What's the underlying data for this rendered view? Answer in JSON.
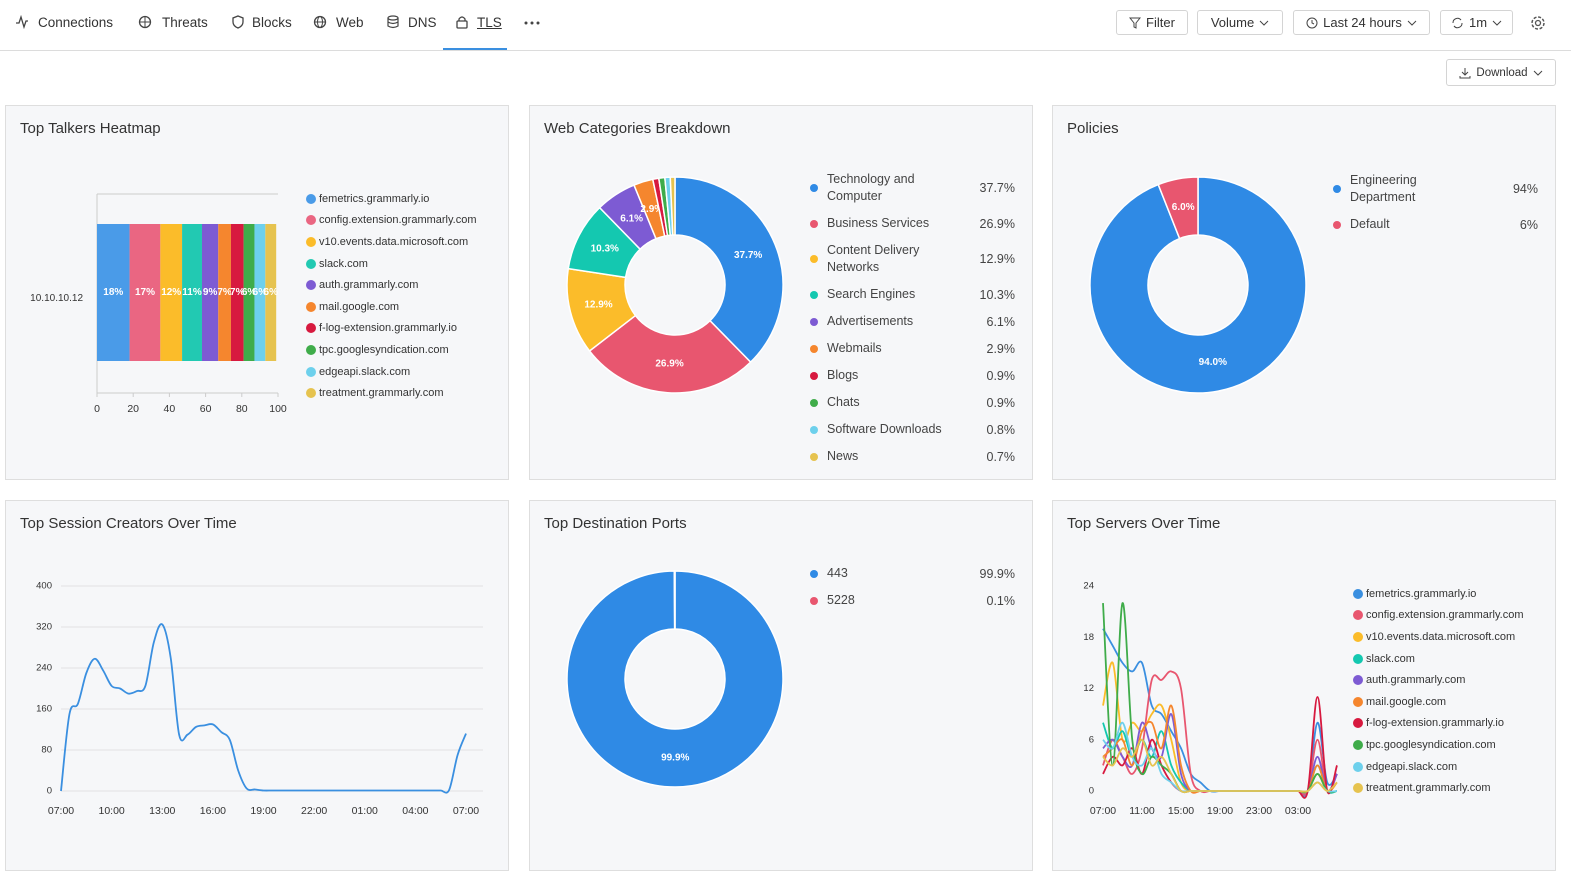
{
  "nav": {
    "tabs": [
      "Connections",
      "Threats",
      "Blocks",
      "Web",
      "DNS",
      "TLS"
    ],
    "active": 5
  },
  "toolbar": {
    "filter": "Filter",
    "volume": "Volume",
    "range": "Last 24 hours",
    "refresh": "1m",
    "download": "Download"
  },
  "chart_data": [
    {
      "type": "stacked-bar",
      "orientation": "horizontal",
      "title": "Top Talkers Heatmap",
      "categories": [
        "10.10.10.12"
      ],
      "series": [
        {
          "name": "femetrics.grammarly.io",
          "color": "#4a9be8",
          "values": [
            18
          ],
          "value_labels": [
            "18%"
          ]
        },
        {
          "name": "config.extension.grammarly.com",
          "color": "#ea6682",
          "values": [
            17
          ],
          "value_labels": [
            "17%"
          ]
        },
        {
          "name": "v10.events.data.microsoft.com",
          "color": "#fbbc2a",
          "values": [
            12
          ],
          "value_labels": [
            "12%"
          ]
        },
        {
          "name": "slack.com",
          "color": "#22c9b2",
          "values": [
            11
          ],
          "value_labels": [
            "11%"
          ]
        },
        {
          "name": "auth.grammarly.com",
          "color": "#7d5bd3",
          "values": [
            9
          ],
          "value_labels": [
            "9%"
          ]
        },
        {
          "name": "mail.google.com",
          "color": "#f5862e",
          "values": [
            7
          ],
          "value_labels": [
            "7%"
          ]
        },
        {
          "name": "f-log-extension.grammarly.io",
          "color": "#d7193f",
          "values": [
            7
          ],
          "value_labels": [
            "7%"
          ]
        },
        {
          "name": "tpc.googlesyndication.com",
          "color": "#3fac4a",
          "values": [
            6
          ],
          "value_labels": [
            "6%"
          ]
        },
        {
          "name": "edgeapi.slack.com",
          "color": "#6dd0ec",
          "values": [
            6
          ],
          "value_labels": [
            "6%"
          ]
        },
        {
          "name": "treatment.grammarly.com",
          "color": "#e6c34f",
          "values": [
            6
          ],
          "value_labels": [
            "6%"
          ]
        }
      ],
      "xlim": [
        0,
        100
      ],
      "xticks": [
        0,
        20,
        40,
        60,
        80,
        100
      ],
      "grid": false
    },
    {
      "type": "donut",
      "title": "Web Categories Breakdown",
      "categories": [
        "Technology and Computer",
        "Business Services",
        "Content Delivery Networks",
        "Search Engines",
        "Advertisements",
        "Webmails",
        "Blogs",
        "Chats",
        "Software Downloads",
        "News"
      ],
      "values": [
        37.7,
        26.9,
        12.9,
        10.3,
        6.1,
        2.9,
        0.9,
        0.9,
        0.8,
        0.7
      ],
      "value_labels": [
        "37.7%",
        "26.9%",
        "12.9%",
        "10.3%",
        "6.1%",
        "2.9%",
        "0.9%",
        "0.9%",
        "0.8%",
        "0.7%"
      ],
      "colors": [
        "#2f8ae5",
        "#e8566f",
        "#fbbc2a",
        "#14c8b0",
        "#7d5bd3",
        "#f5862e",
        "#d7193f",
        "#3fac4a",
        "#6dd0ec",
        "#e6c34f"
      ]
    },
    {
      "type": "donut",
      "title": "Policies",
      "categories": [
        "Engineering Department",
        "Default"
      ],
      "values": [
        94,
        6
      ],
      "value_labels": [
        "94%",
        "6%"
      ],
      "slice_labels": [
        "94.0%",
        "6.0%"
      ],
      "colors": [
        "#2f8ae5",
        "#e8566f"
      ]
    },
    {
      "type": "line",
      "title": "Top Session Creators Over Time",
      "categories": [
        "07:00",
        null,
        null,
        null,
        null,
        null,
        "10:00",
        null,
        null,
        null,
        null,
        null,
        "13:00",
        null,
        null,
        null,
        null,
        null,
        "16:00",
        null,
        null,
        null,
        null,
        null,
        "19:00",
        null,
        null,
        null,
        null,
        null,
        "22:00",
        null,
        null,
        null,
        null,
        null,
        "01:00",
        null,
        null,
        null,
        null,
        null,
        "04:00",
        null,
        null,
        null,
        null,
        null,
        "07:00"
      ],
      "values": [
        0,
        150,
        170,
        230,
        258,
        235,
        205,
        200,
        190,
        195,
        205,
        290,
        325,
        260,
        110,
        110,
        125,
        128,
        130,
        115,
        100,
        40,
        5,
        3,
        1,
        1,
        1,
        1,
        1,
        1,
        1,
        1,
        1,
        1,
        1,
        1,
        1,
        1,
        1,
        1,
        1,
        1,
        1,
        1,
        1,
        1,
        2,
        70,
        112
      ],
      "color": "#3a8fe0",
      "ylim": [
        0,
        400
      ],
      "yticks": [
        0,
        80,
        160,
        240,
        320,
        400
      ],
      "grid": true
    },
    {
      "type": "donut",
      "title": "Top Destination Ports",
      "categories": [
        "443",
        "5228"
      ],
      "values": [
        99.9,
        0.1
      ],
      "value_labels": [
        "99.9%",
        "0.1%"
      ],
      "colors": [
        "#2f8ae5",
        "#e8566f"
      ]
    },
    {
      "type": "line",
      "title": "Top Servers Over Time",
      "categories": [
        "07:00",
        null,
        null,
        null,
        "11:00",
        null,
        null,
        null,
        "15:00",
        null,
        null,
        null,
        "19:00",
        null,
        null,
        null,
        "23:00",
        null,
        null,
        null,
        "03:00",
        null,
        null,
        null,
        null
      ],
      "series": [
        {
          "name": "femetrics.grammarly.io",
          "color": "#3a8fe0",
          "values": [
            19,
            17,
            15,
            14,
            15,
            10,
            9,
            7,
            5,
            2,
            1,
            0,
            0,
            0,
            0,
            0,
            0,
            0,
            0,
            0,
            0,
            0,
            8,
            1,
            2
          ]
        },
        {
          "name": "config.extension.grammarly.com",
          "color": "#e8566f",
          "values": [
            3,
            6,
            4,
            2,
            5,
            13,
            13,
            14,
            12,
            2,
            0,
            0,
            0,
            0,
            0,
            0,
            0,
            0,
            0,
            0,
            0,
            0,
            6,
            0,
            2
          ]
        },
        {
          "name": "v10.events.data.microsoft.com",
          "color": "#fbbc2a",
          "values": [
            10,
            15,
            6,
            8,
            7,
            9,
            10,
            6,
            1,
            0,
            0,
            0,
            0,
            0,
            0,
            0,
            0,
            0,
            0,
            0,
            0,
            0,
            2,
            0,
            1
          ]
        },
        {
          "name": "slack.com",
          "color": "#14c8b0",
          "values": [
            8,
            5,
            7,
            4,
            6,
            4,
            7,
            3,
            1,
            0,
            0,
            0,
            0,
            0,
            0,
            0,
            0,
            0,
            0,
            0,
            0,
            0,
            3,
            0,
            0
          ]
        },
        {
          "name": "auth.grammarly.com",
          "color": "#7d5bd3",
          "values": [
            5,
            6,
            4,
            3,
            8,
            5,
            4,
            9,
            2,
            0,
            0,
            0,
            0,
            0,
            0,
            0,
            0,
            0,
            0,
            0,
            0,
            0,
            4,
            0,
            2
          ]
        },
        {
          "name": "mail.google.com",
          "color": "#f5862e",
          "values": [
            4,
            5,
            6,
            3,
            7,
            8,
            5,
            10,
            3,
            0,
            0,
            0,
            0,
            0,
            0,
            0,
            0,
            0,
            0,
            0,
            0,
            0,
            3,
            0,
            1
          ]
        },
        {
          "name": "f-log-extension.grammarly.io",
          "color": "#d7193f",
          "values": [
            2,
            4,
            3,
            5,
            2,
            6,
            3,
            1,
            0,
            0,
            0,
            0,
            0,
            0,
            0,
            0,
            0,
            0,
            0,
            0,
            0,
            0,
            11,
            0,
            3
          ]
        },
        {
          "name": "tpc.googlesyndication.com",
          "color": "#3fac4a",
          "values": [
            22,
            3,
            22,
            6,
            2,
            4,
            3,
            2,
            0,
            0,
            0,
            0,
            0,
            0,
            0,
            0,
            0,
            0,
            0,
            0,
            0,
            0,
            2,
            0,
            0
          ]
        },
        {
          "name": "edgeapi.slack.com",
          "color": "#6dd0ec",
          "values": [
            6,
            5,
            8,
            4,
            3,
            5,
            2,
            1,
            0,
            0,
            0,
            0,
            0,
            0,
            0,
            0,
            0,
            0,
            0,
            0,
            0,
            0,
            1,
            0,
            0
          ]
        },
        {
          "name": "treatment.grammarly.com",
          "color": "#e6c34f",
          "values": [
            4,
            3,
            5,
            4,
            6,
            3,
            4,
            2,
            0,
            0,
            0,
            0,
            0,
            0,
            0,
            0,
            0,
            0,
            0,
            0,
            0,
            0,
            1,
            0,
            1
          ]
        }
      ],
      "ylim": [
        0,
        24
      ],
      "yticks": [
        0,
        6,
        12,
        18,
        24
      ],
      "grid": false
    }
  ]
}
